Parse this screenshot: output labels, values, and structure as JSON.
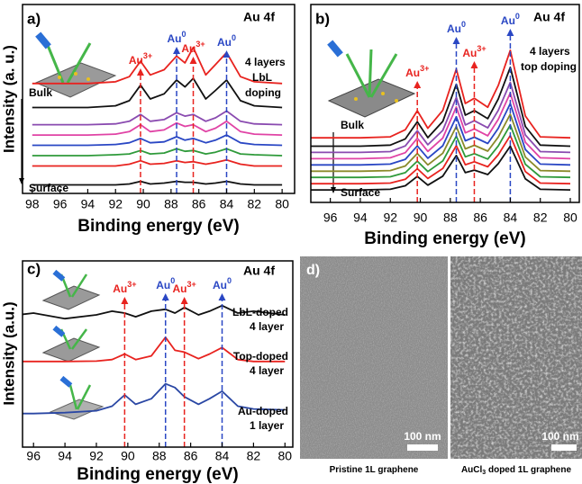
{
  "chart_data": [
    {
      "type": "line",
      "label": "a)",
      "title": "Au 4f",
      "annotations": [
        "4 layers",
        "LbL",
        "doping",
        "Bulk",
        "Surface"
      ],
      "x_label": "Binding energy (eV)",
      "y_label": "Intensity (a. u.)",
      "x": [
        98,
        96,
        94,
        92,
        91,
        90.2,
        89.5,
        88.5,
        87.6,
        87,
        86.4,
        85.5,
        84.8,
        84,
        83,
        82,
        80
      ],
      "xlim": [
        98.7,
        79.1
      ],
      "xticks": [
        98,
        96,
        94,
        92,
        90,
        88,
        86,
        84,
        82,
        80
      ],
      "ylim": [
        1,
        12
      ],
      "series": [
        {
          "color": "#e8231f",
          "values": [
            7.4,
            7.4,
            7.4,
            7.5,
            7.8,
            8.7,
            7.9,
            8.2,
            9.0,
            8.6,
            9.5,
            7.9,
            8.5,
            9.2,
            7.8,
            7.5,
            7.4
          ]
        },
        {
          "color": "#111111",
          "values": [
            6.0,
            6.0,
            6.0,
            6.1,
            6.4,
            7.3,
            6.5,
            6.8,
            7.6,
            7.2,
            7.7,
            6.5,
            7.0,
            7.6,
            6.4,
            6.1,
            6.0
          ]
        },
        {
          "color": "#8a4bb0",
          "values": [
            5.0,
            5.0,
            5.0,
            5.05,
            5.2,
            5.6,
            5.2,
            5.3,
            5.7,
            5.5,
            5.6,
            5.2,
            5.4,
            5.8,
            5.2,
            5.05,
            5.0
          ]
        },
        {
          "color": "#e043a5",
          "values": [
            4.4,
            4.4,
            4.4,
            4.45,
            4.6,
            5.0,
            4.6,
            4.7,
            5.1,
            4.9,
            5.0,
            4.6,
            4.8,
            5.2,
            4.6,
            4.45,
            4.4
          ]
        },
        {
          "color": "#2a47c4",
          "values": [
            3.8,
            3.8,
            3.8,
            3.85,
            3.95,
            4.2,
            3.95,
            4.0,
            4.3,
            4.1,
            4.2,
            3.95,
            4.1,
            4.4,
            3.95,
            3.85,
            3.8
          ]
        },
        {
          "color": "#2e9a3a",
          "values": [
            3.2,
            3.2,
            3.2,
            3.25,
            3.3,
            3.5,
            3.3,
            3.35,
            3.6,
            3.45,
            3.5,
            3.3,
            3.4,
            3.6,
            3.3,
            3.25,
            3.2
          ]
        },
        {
          "color": "#e8231f",
          "values": [
            2.6,
            2.6,
            2.6,
            2.6,
            2.7,
            2.9,
            2.7,
            2.75,
            2.9,
            2.8,
            2.85,
            2.7,
            2.8,
            2.95,
            2.7,
            2.6,
            2.6
          ]
        },
        {
          "color": "#111111",
          "values": [
            1.5,
            1.5,
            1.5,
            1.5,
            1.55,
            1.7,
            1.55,
            1.6,
            1.7,
            1.65,
            1.65,
            1.55,
            1.6,
            1.7,
            1.55,
            1.5,
            1.5
          ]
        }
      ],
      "markers": [
        {
          "x": 90.2,
          "label": "Au",
          "sup": "3+",
          "color": "#e8231f"
        },
        {
          "x": 87.6,
          "label": "Au",
          "sup": "0",
          "color": "#2a47c4"
        },
        {
          "x": 86.4,
          "label": "Au",
          "sup": "3+",
          "color": "#e8231f"
        },
        {
          "x": 84,
          "label": "Au",
          "sup": "0",
          "color": "#2a47c4"
        }
      ]
    },
    {
      "type": "line",
      "label": "b)",
      "title": "Au 4f",
      "annotations": [
        "4 layers",
        "top doping",
        "Bulk",
        "Surface"
      ],
      "x_label": "Binding energy (eV)",
      "x": [
        98,
        96,
        94,
        92,
        91,
        90.2,
        89.5,
        88.5,
        87.6,
        87,
        86.4,
        85.5,
        84.8,
        84,
        83,
        82,
        80
      ],
      "xlim": [
        97.3,
        79.4
      ],
      "xticks": [
        96,
        94,
        92,
        90,
        88,
        86,
        84,
        82,
        80
      ],
      "ylim": [
        0.5,
        10
      ],
      "series": [
        {
          "color": "#e8231f",
          "values": [
            3.6,
            3.6,
            3.6,
            3.65,
            3.99,
            4.9,
            4.06,
            4.92,
            6.9,
            5.25,
            5.5,
            5.07,
            6.12,
            7.8,
            4.65,
            3.65,
            3.6
          ]
        },
        {
          "color": "#111111",
          "values": [
            3.2,
            3.2,
            3.2,
            3.25,
            3.55,
            4.37,
            3.61,
            4.39,
            6.17,
            4.69,
            4.91,
            4.52,
            5.47,
            6.98,
            4.15,
            3.25,
            3.2
          ]
        },
        {
          "color": "#8a4bb0",
          "values": [
            2.9,
            2.9,
            2.9,
            2.94,
            3.21,
            3.94,
            3.27,
            3.96,
            5.54,
            4.22,
            4.42,
            4.08,
            4.92,
            6.26,
            3.74,
            2.94,
            2.9
          ]
        },
        {
          "color": "#e043a5",
          "values": [
            2.6,
            2.6,
            2.6,
            2.64,
            2.89,
            3.58,
            2.95,
            3.59,
            5.08,
            3.84,
            4.03,
            3.7,
            4.49,
            5.75,
            3.39,
            2.64,
            2.6
          ]
        },
        {
          "color": "#2a47c4",
          "values": [
            2.3,
            2.3,
            2.3,
            2.34,
            2.57,
            3.21,
            2.62,
            3.22,
            4.61,
            3.46,
            3.63,
            3.33,
            4.06,
            5.24,
            3.04,
            2.34,
            2.3
          ]
        },
        {
          "color": "#8a8a2a",
          "values": [
            2.0,
            2.0,
            2.0,
            2.03,
            2.25,
            2.85,
            2.3,
            2.86,
            4.15,
            3.07,
            3.24,
            2.96,
            3.64,
            4.73,
            2.68,
            2.03,
            2.0
          ]
        },
        {
          "color": "#2e9a3a",
          "values": [
            1.7,
            1.7,
            1.7,
            1.73,
            1.93,
            2.48,
            1.98,
            2.49,
            3.68,
            2.69,
            2.84,
            2.58,
            3.21,
            4.22,
            2.33,
            1.73,
            1.7
          ]
        },
        {
          "color": "#e8231f",
          "values": [
            1.4,
            1.4,
            1.4,
            1.43,
            1.61,
            2.12,
            1.65,
            2.13,
            3.22,
            2.31,
            2.45,
            2.21,
            2.79,
            3.71,
            1.98,
            1.43,
            1.4
          ]
        },
        {
          "color": "#111111",
          "values": [
            1.1,
            1.1,
            1.1,
            1.13,
            1.3,
            1.75,
            1.33,
            1.76,
            2.75,
            1.93,
            2.05,
            1.84,
            2.36,
            3.2,
            1.63,
            1.13,
            1.1
          ]
        }
      ],
      "markers": [
        {
          "x": 90.2,
          "label": "Au",
          "sup": "3+",
          "color": "#e8231f"
        },
        {
          "x": 87.6,
          "label": "Au",
          "sup": "0",
          "color": "#2a47c4"
        },
        {
          "x": 86.4,
          "label": "Au",
          "sup": "3+",
          "color": "#e8231f"
        },
        {
          "x": 84,
          "label": "Au",
          "sup": "0",
          "color": "#2a47c4"
        }
      ]
    },
    {
      "type": "line",
      "label": "c)",
      "title": "Au 4f",
      "annotations": [
        "LbL-doped",
        "4 layer",
        "Top-doped",
        "4 layer",
        "Au-doped",
        "1 layer"
      ],
      "x_label": "Binding energy (eV)",
      "y_label": "Intensity (a.u.)",
      "x": [
        98,
        96,
        94,
        92,
        91,
        90.2,
        89.5,
        88.5,
        87.6,
        87,
        86.4,
        85.5,
        84.8,
        84,
        83,
        82,
        80
      ],
      "xlim": [
        96.7,
        79.5
      ],
      "xticks": [
        96,
        94,
        92,
        90,
        88,
        86,
        84,
        82,
        80
      ],
      "ylim": [
        0,
        10
      ],
      "series": [
        {
          "color": "#111111",
          "values": [
            7.0,
            7.2,
            6.9,
            7.1,
            7.3,
            7.2,
            7.0,
            7.3,
            7.4,
            7.2,
            7.5,
            7.1,
            7.3,
            7.6,
            7.2,
            7.3,
            7.1
          ]
        },
        {
          "color": "#e8231f",
          "values": [
            4.6,
            4.6,
            4.6,
            4.62,
            4.7,
            5.0,
            4.7,
            4.9,
            5.9,
            5.2,
            5.1,
            4.75,
            5.0,
            5.35,
            4.7,
            4.6,
            4.6
          ]
        },
        {
          "color": "#2a47a4",
          "values": [
            1.8,
            1.8,
            1.85,
            1.95,
            2.2,
            2.8,
            2.3,
            2.6,
            3.4,
            3.2,
            2.7,
            2.3,
            2.6,
            3.0,
            2.2,
            2.05,
            2.0
          ]
        }
      ],
      "markers": [
        {
          "x": 90.2,
          "label": "Au",
          "sup": "3+",
          "color": "#e8231f"
        },
        {
          "x": 87.6,
          "label": "Au",
          "sup": "0",
          "color": "#2a47c4"
        },
        {
          "x": 86.4,
          "label": "Au",
          "sup": "3+",
          "color": "#e8231f"
        },
        {
          "x": 84,
          "label": "Au",
          "sup": "0",
          "color": "#2a47c4"
        }
      ]
    }
  ],
  "image_panel": {
    "label": "d)",
    "images": [
      {
        "scale_bar": "100 nm",
        "caption": [
          {
            "text": "Pristine 1L graphene"
          }
        ]
      },
      {
        "scale_bar": "100 nm",
        "caption": [
          {
            "text": "AuCl"
          },
          {
            "text": "3",
            "sub": true
          },
          {
            "text": " doped 1L graphene"
          }
        ]
      }
    ]
  }
}
